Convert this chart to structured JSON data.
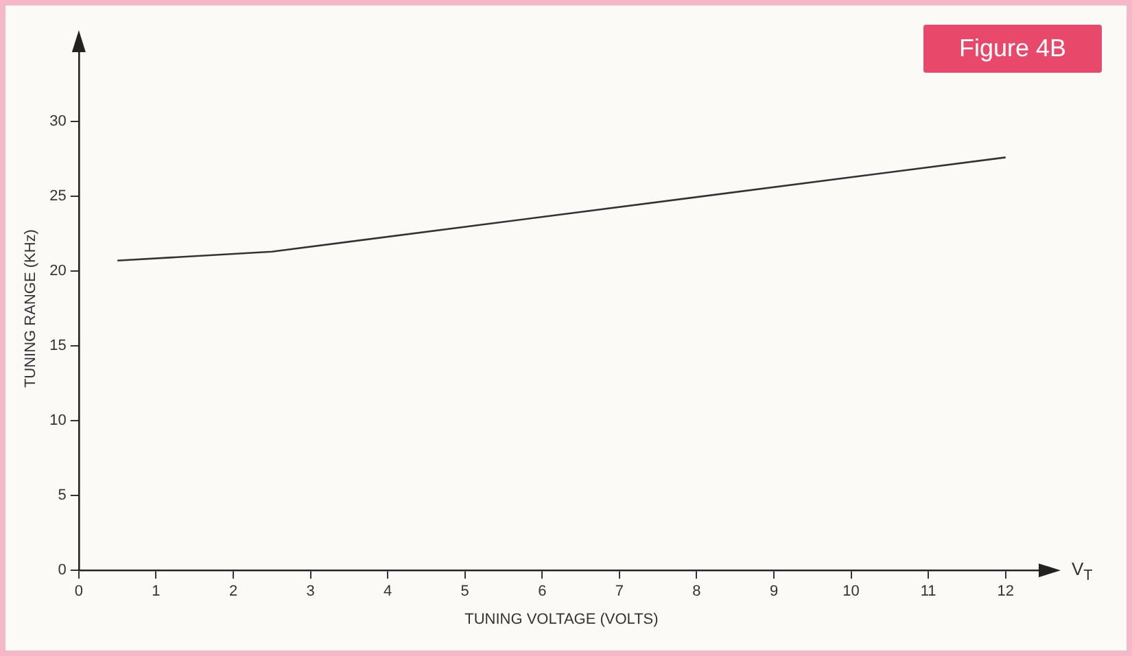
{
  "chart_data": {
    "type": "line",
    "title": "Figure 4B",
    "xlabel": "TUNING VOLTAGE (VOLTS)",
    "ylabel": "TUNING RANGE (KHz)",
    "x": [
      0.5,
      2.5,
      12
    ],
    "series": [
      {
        "color": "#333333",
        "values": [
          20.7,
          21.3,
          27.6
        ]
      }
    ],
    "xlim": [
      0,
      12.5
    ],
    "xticks": [
      0,
      1,
      2,
      3,
      4,
      5,
      6,
      7,
      8,
      9,
      10,
      11,
      12
    ],
    "ylim": [
      0,
      35
    ],
    "yticks": [
      0,
      5,
      10,
      15,
      20,
      25,
      30
    ],
    "annotations": [
      "V$_{T}$"
    ],
    "grid": false,
    "legend": false,
    "marker": "none",
    "line_style": "solid"
  }
}
